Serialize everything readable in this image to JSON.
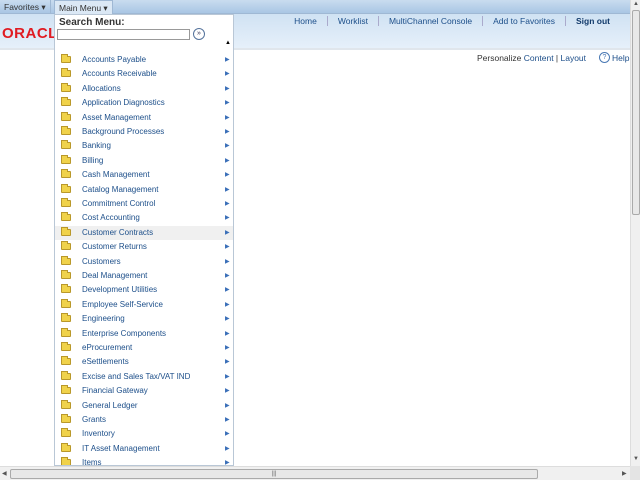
{
  "topbar": {
    "favorites": "Favorites ▾",
    "main_menu": "Main Menu ▾"
  },
  "header": {
    "logo": "ORACLE",
    "nav": [
      "Home",
      "Worklist",
      "MultiChannel Console",
      "Add to Favorites",
      "Sign out"
    ]
  },
  "page": {
    "personalize": "Personalize ",
    "content": "Content",
    "sep": " | ",
    "layout": "Layout",
    "help": "Help"
  },
  "menu": {
    "search_title": "Search Menu:",
    "search_value": "",
    "go_icon": "»",
    "hover_item": "Customer Contracts",
    "items": [
      "Accounts Payable",
      "Accounts Receivable",
      "Allocations",
      "Application Diagnostics",
      "Asset Management",
      "Background Processes",
      "Banking",
      "Billing",
      "Cash Management",
      "Catalog Management",
      "Commitment Control",
      "Cost Accounting",
      "Customer Contracts",
      "Customer Returns",
      "Customers",
      "Deal Management",
      "Development Utilities",
      "Employee Self-Service",
      "Engineering",
      "Enterprise Components",
      "eProcurement",
      "eSettlements",
      "Excise and Sales Tax/VAT IND",
      "Financial Gateway",
      "General Ledger",
      "Grants",
      "Inventory",
      "IT Asset Management",
      "Items"
    ]
  },
  "colors": {
    "logo": "#e01b22",
    "link": "#1d4f8a"
  }
}
